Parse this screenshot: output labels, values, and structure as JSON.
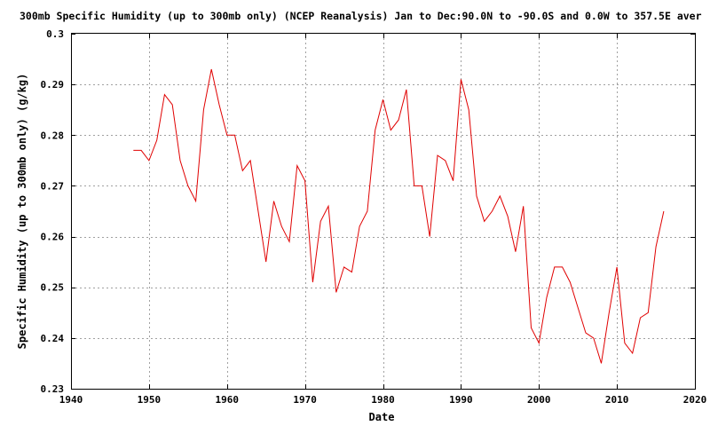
{
  "chart_data": {
    "type": "line",
    "title": "300mb Specific Humidity (up to 300mb only) (NCEP Reanalysis) Jan to Dec:90.0N to -90.0S and 0.0W to 357.5E aver",
    "xlabel": "Date",
    "ylabel": "Specific Humidity (up to 300mb only) (g/kg)",
    "xlim": [
      1940,
      2020
    ],
    "ylim": [
      0.23,
      0.3
    ],
    "xticks": [
      "1940",
      "1950",
      "1960",
      "1970",
      "1980",
      "1990",
      "2000",
      "2010",
      "2020"
    ],
    "yticks": [
      "0.23",
      "0.24",
      "0.25",
      "0.26",
      "0.27",
      "0.28",
      "0.29",
      "0.3"
    ],
    "grid": true,
    "series_color": "#e00000",
    "x": [
      1948,
      1949,
      1950,
      1951,
      1952,
      1953,
      1954,
      1955,
      1956,
      1957,
      1958,
      1959,
      1960,
      1961,
      1962,
      1963,
      1964,
      1965,
      1966,
      1967,
      1968,
      1969,
      1970,
      1971,
      1972,
      1973,
      1974,
      1975,
      1976,
      1977,
      1978,
      1979,
      1980,
      1981,
      1982,
      1983,
      1984,
      1985,
      1986,
      1987,
      1988,
      1989,
      1990,
      1991,
      1992,
      1993,
      1994,
      1995,
      1996,
      1997,
      1998,
      1999,
      2000,
      2001,
      2002,
      2003,
      2004,
      2005,
      2006,
      2007,
      2008,
      2009,
      2010,
      2011,
      2012,
      2013,
      2014,
      2015,
      2016
    ],
    "y": [
      0.277,
      0.277,
      0.275,
      0.279,
      0.288,
      0.286,
      0.275,
      0.27,
      0.267,
      0.285,
      0.293,
      0.286,
      0.28,
      0.28,
      0.273,
      0.275,
      0.265,
      0.255,
      0.267,
      0.262,
      0.259,
      0.274,
      0.271,
      0.251,
      0.263,
      0.266,
      0.249,
      0.254,
      0.253,
      0.262,
      0.265,
      0.281,
      0.287,
      0.281,
      0.283,
      0.289,
      0.27,
      0.27,
      0.26,
      0.276,
      0.275,
      0.271,
      0.291,
      0.285,
      0.268,
      0.263,
      0.265,
      0.268,
      0.264,
      0.257,
      0.266,
      0.242,
      0.239,
      0.248,
      0.254,
      0.254,
      0.251,
      0.246,
      0.241,
      0.24,
      0.235,
      0.245,
      0.254,
      0.239,
      0.237,
      0.244,
      0.245,
      0.258,
      0.265
    ]
  }
}
